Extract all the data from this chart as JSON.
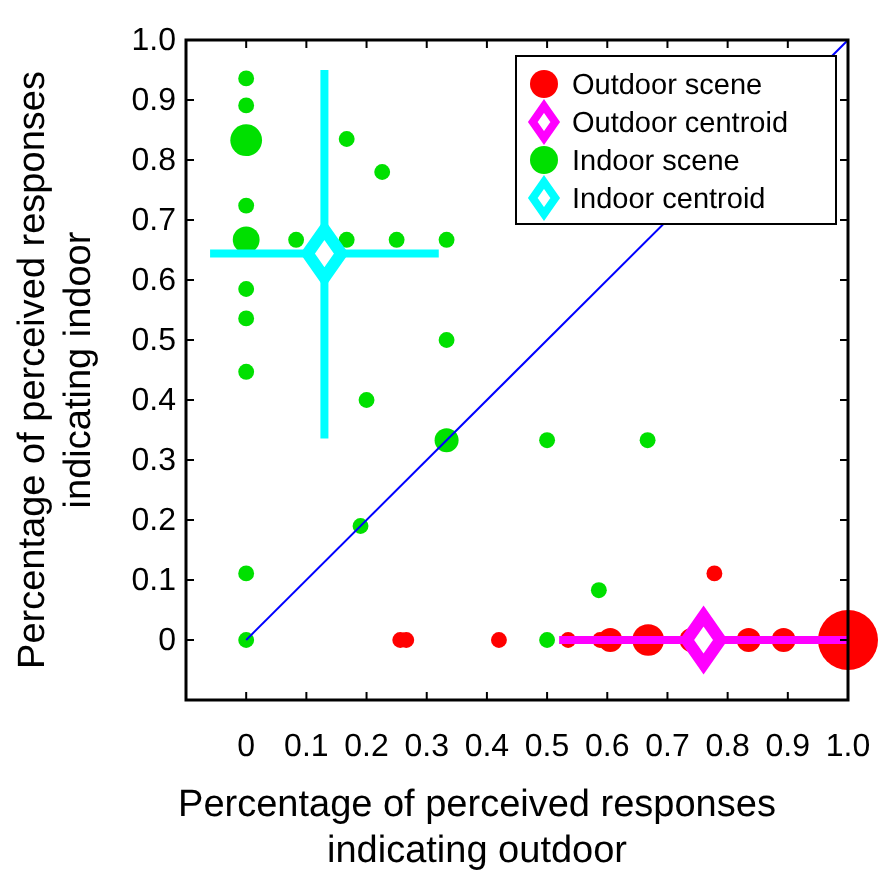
{
  "chart_data": {
    "type": "scatter",
    "xlabel": "Percentage of perceived responses\nindicating outdoor",
    "ylabel": "Percentage of perceived responses\nindicating indoor",
    "xlim": [
      -0.1,
      1.0
    ],
    "ylim": [
      -0.1,
      1.0
    ],
    "xticks": [
      {
        "value": -0.1,
        "label": null
      },
      0,
      0.1,
      0.2,
      0.3,
      0.4,
      0.5,
      0.6,
      0.7,
      0.8,
      0.9,
      {
        "value": 1,
        "label": "1.0"
      }
    ],
    "yticks": [
      {
        "value": -0.1,
        "label": null
      },
      0,
      0.1,
      0.2,
      0.3,
      0.4,
      0.5,
      0.6,
      0.7,
      0.8,
      0.9,
      {
        "value": 1,
        "label": "1.0"
      }
    ],
    "grid": false,
    "legend": "top right",
    "series": [
      {
        "type": "bubble",
        "name": "Outdoor scene",
        "color": "#ff0000",
        "marker": "circle",
        "x": [
          0.256,
          0.266,
          0.42,
          0.535,
          0.588,
          0.605,
          0.668,
          0.74,
          0.778,
          0.835,
          0.893,
          1.0
        ],
        "values": [
          0,
          0,
          0,
          0,
          0,
          0,
          0,
          0,
          0.111,
          0,
          0,
          0
        ],
        "sizes": [
          0.07,
          0.07,
          0.07,
          0.07,
          0.07,
          0.16,
          0.28,
          0.16,
          0.07,
          0.16,
          0.16,
          1
        ]
      },
      {
        "type": "scatter",
        "name": "Outdoor centroid",
        "color": "#ff00ff",
        "marker": "diamond",
        "x": [
          0.76
        ],
        "values": [
          0
        ],
        "xerrors": [
          [
            0.52,
            1.0
          ]
        ]
      },
      {
        "type": "bubble",
        "name": "Indoor scene",
        "color": "#00e000",
        "marker": "circle",
        "x": [
          0,
          0,
          0,
          0,
          0,
          0.083,
          0.167,
          0.25,
          0.333,
          0.167,
          0.226,
          0,
          0,
          0,
          0.333,
          0.2,
          0.333,
          0.19,
          0,
          0,
          0.5,
          0.667,
          0.586,
          0.5
        ],
        "values": [
          0.936,
          0.891,
          0.833,
          0.724,
          0.667,
          0.667,
          0.667,
          0.667,
          0.667,
          0.835,
          0.78,
          0.585,
          0.536,
          0.447,
          0.5,
          0.4,
          0.333,
          0.19,
          0.111,
          0,
          0.333,
          0.333,
          0.083,
          0
        ],
        "sizes": [
          0.07,
          0.07,
          0.28,
          0.07,
          0.2,
          0.07,
          0.07,
          0.07,
          0.07,
          0.07,
          0.07,
          0.07,
          0.07,
          0.07,
          0.07,
          0.07,
          0.16,
          0.07,
          0.07,
          0.07,
          0.07,
          0.07,
          0.07,
          0.07
        ]
      },
      {
        "type": "scatter",
        "name": "Indoor centroid",
        "color": "#00ffff",
        "marker": "diamond",
        "x": [
          0.13
        ],
        "values": [
          0.644
        ],
        "xerrors": [
          [
            -0.06,
            0.32
          ]
        ],
        "errors": [
          [
            0.336,
            0.95
          ]
        ]
      },
      {
        "type": "line",
        "color": "#0000ff",
        "marker": "none",
        "x": [
          0,
          1
        ],
        "values": [
          0,
          1
        ]
      }
    ]
  }
}
